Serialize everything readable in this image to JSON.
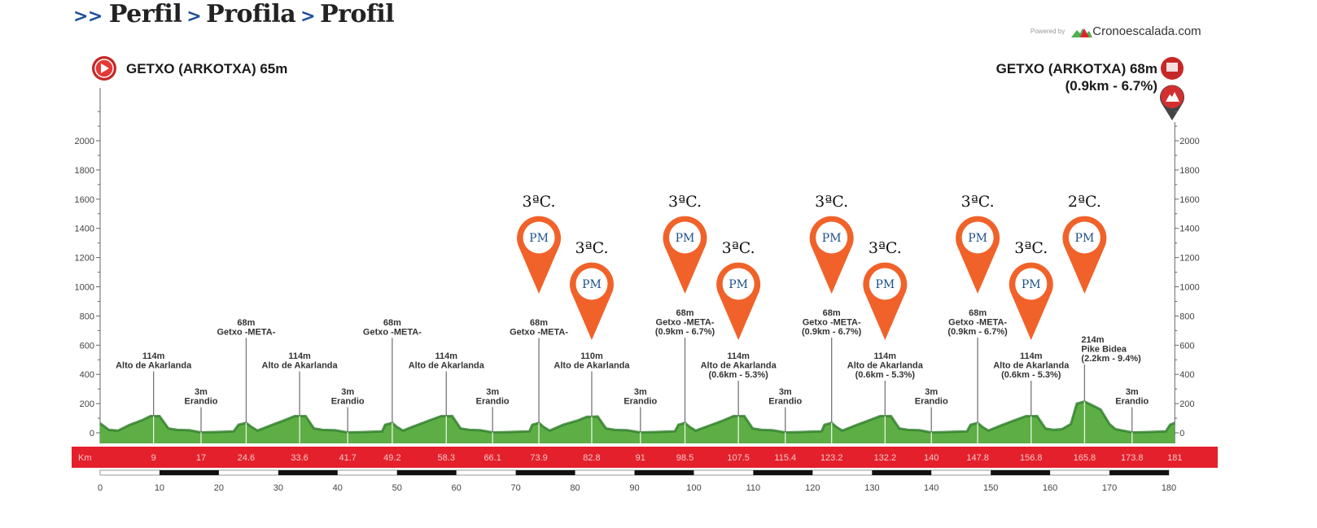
{
  "header": {
    "prefix": ">>",
    "separator": ">",
    "parts": [
      "Perfil",
      "Profila",
      "Profil"
    ]
  },
  "powered": {
    "label": "Powered by",
    "brand": "Cronoescalada.com"
  },
  "start": {
    "label": "GETXO (ARKOTXA) 65m",
    "icon": "play-icon"
  },
  "finish": {
    "label": "GETXO (ARKOTXA) 68m",
    "detail": "(0.9km - 6.7%)",
    "icon": "finish-flag-icon",
    "climb_icon": "mountain-pin-icon"
  },
  "colors": {
    "profile": "#5cae45",
    "profile_top": "#2f7d2a",
    "km_bar": "#e3202c",
    "pin": "#f0622a",
    "pin_text": "#1d4f8a",
    "title_accent": "#1d4f9a"
  },
  "chart_data": {
    "type": "area",
    "x_unit": "Km",
    "xlim": [
      0,
      181
    ],
    "ylim": [
      0,
      2000
    ],
    "yticks": [
      0,
      200,
      400,
      600,
      800,
      1000,
      1200,
      1400,
      1600,
      1800,
      2000
    ],
    "scale_ticks": [
      0,
      10,
      20,
      30,
      40,
      50,
      60,
      70,
      80,
      90,
      100,
      110,
      120,
      130,
      140,
      150,
      160,
      170,
      180
    ],
    "km_markers": [
      "9",
      "17",
      "24.6",
      "33.6",
      "41.7",
      "49.2",
      "58.3",
      "66.1",
      "73.9",
      "82.8",
      "91",
      "98.5",
      "107.5",
      "115.4",
      "123.2",
      "132.2",
      "140",
      "147.8",
      "156.8",
      "165.8",
      "173.8",
      "181"
    ],
    "profile": {
      "km": [
        0,
        1.5,
        3,
        5,
        7,
        8.5,
        9,
        10,
        11.5,
        13,
        15,
        17,
        19,
        21,
        22.5,
        23.3,
        24.6,
        25.5,
        26.5,
        29,
        31,
        32.8,
        33.6,
        34.6,
        36,
        37.5,
        39.5,
        41.7,
        44,
        46,
        47.5,
        48,
        49.2,
        50,
        51,
        53.5,
        55.5,
        57.5,
        58.3,
        59.3,
        60.7,
        62.2,
        64,
        66.1,
        68.5,
        70.5,
        72.3,
        72.8,
        73.9,
        74.7,
        75.7,
        78,
        80.5,
        82,
        82.8,
        83.8,
        85.2,
        86.7,
        88.7,
        91,
        93,
        95,
        96.8,
        97.4,
        98.5,
        99.3,
        100.3,
        103,
        105,
        106.7,
        107.5,
        108.5,
        109.9,
        111.4,
        113.2,
        115.4,
        117.5,
        119.5,
        121.5,
        122,
        123.2,
        124,
        125,
        127.5,
        129.5,
        131.4,
        132.2,
        133.2,
        134.6,
        136.1,
        138,
        140,
        142,
        144,
        146,
        146.6,
        147.8,
        148.6,
        149.6,
        152,
        154,
        156,
        156.8,
        157.8,
        159.2,
        160.5,
        162,
        163.5,
        164.5,
        165.8,
        167,
        168.5,
        170,
        171,
        173.8,
        176,
        178,
        179.5,
        180.2,
        181
      ],
      "elev": [
        65,
        20,
        15,
        55,
        85,
        115,
        114,
        115,
        30,
        20,
        18,
        3,
        5,
        8,
        10,
        55,
        68,
        40,
        15,
        55,
        85,
        115,
        114,
        115,
        30,
        20,
        18,
        3,
        5,
        8,
        10,
        55,
        68,
        40,
        15,
        55,
        85,
        115,
        114,
        115,
        30,
        20,
        18,
        3,
        5,
        8,
        10,
        55,
        68,
        40,
        15,
        55,
        85,
        110,
        110,
        112,
        30,
        20,
        18,
        3,
        5,
        8,
        10,
        55,
        68,
        40,
        15,
        55,
        85,
        115,
        114,
        115,
        30,
        20,
        18,
        3,
        5,
        8,
        10,
        55,
        68,
        40,
        15,
        55,
        85,
        115,
        114,
        115,
        30,
        20,
        18,
        3,
        5,
        8,
        10,
        55,
        68,
        40,
        15,
        55,
        85,
        115,
        114,
        115,
        30,
        20,
        25,
        60,
        200,
        214,
        190,
        160,
        60,
        25,
        3,
        5,
        8,
        10,
        55,
        68
      ]
    },
    "points": [
      {
        "km": 9,
        "elev": "114m",
        "name": "Alto de Akarlanda",
        "detail": ""
      },
      {
        "km": 17,
        "elev": "3m",
        "name": "Erandio",
        "detail": ""
      },
      {
        "km": 24.6,
        "elev": "68m",
        "name": "Getxo -META-",
        "detail": ""
      },
      {
        "km": 33.6,
        "elev": "114m",
        "name": "Alto de Akarlanda",
        "detail": ""
      },
      {
        "km": 41.7,
        "elev": "3m",
        "name": "Erandio",
        "detail": ""
      },
      {
        "km": 49.2,
        "elev": "68m",
        "name": "Getxo -META-",
        "detail": ""
      },
      {
        "km": 58.3,
        "elev": "114m",
        "name": "Alto de Akarlanda",
        "detail": ""
      },
      {
        "km": 66.1,
        "elev": "3m",
        "name": "Erandio",
        "detail": ""
      },
      {
        "km": 73.9,
        "elev": "68m",
        "name": "Getxo -META-",
        "detail": ""
      },
      {
        "km": 82.8,
        "elev": "110m",
        "name": "Alto de Akarlanda",
        "detail": ""
      },
      {
        "km": 91,
        "elev": "3m",
        "name": "Erandio",
        "detail": ""
      },
      {
        "km": 98.5,
        "elev": "68m",
        "name": "Getxo -META-",
        "detail": "(0.9km - 6.7%)"
      },
      {
        "km": 107.5,
        "elev": "114m",
        "name": "Alto de Akarlanda",
        "detail": "(0.6km - 5.3%)"
      },
      {
        "km": 115.4,
        "elev": "3m",
        "name": "Erandio",
        "detail": ""
      },
      {
        "km": 123.2,
        "elev": "68m",
        "name": "Getxo -META-",
        "detail": "(0.9km - 6.7%)"
      },
      {
        "km": 132.2,
        "elev": "114m",
        "name": "Alto de Akarlanda",
        "detail": "(0.6km - 5.3%)"
      },
      {
        "km": 140,
        "elev": "3m",
        "name": "Erandio",
        "detail": ""
      },
      {
        "km": 147.8,
        "elev": "68m",
        "name": "Getxo -META-",
        "detail": "(0.9km - 6.7%)"
      },
      {
        "km": 156.8,
        "elev": "114m",
        "name": "Alto de Akarlanda",
        "detail": "(0.6km - 5.3%)"
      },
      {
        "km": 165.8,
        "elev": "214m",
        "name": "Pike Bidea",
        "detail": "(2.2km - 9.4%)"
      },
      {
        "km": 173.8,
        "elev": "3m",
        "name": "Erandio",
        "detail": ""
      }
    ],
    "climbs": [
      {
        "km": 73.9,
        "category": "3ªC.",
        "badge": "PM"
      },
      {
        "km": 82.8,
        "category": "3ªC.",
        "badge": "PM"
      },
      {
        "km": 98.5,
        "category": "3ªC.",
        "badge": "PM"
      },
      {
        "km": 107.5,
        "category": "3ªC.",
        "badge": "PM"
      },
      {
        "km": 123.2,
        "category": "3ªC.",
        "badge": "PM"
      },
      {
        "km": 132.2,
        "category": "3ªC.",
        "badge": "PM"
      },
      {
        "km": 147.8,
        "category": "3ªC.",
        "badge": "PM"
      },
      {
        "km": 156.8,
        "category": "3ªC.",
        "badge": "PM"
      },
      {
        "km": 165.8,
        "category": "2ªC.",
        "badge": "PM"
      }
    ]
  }
}
